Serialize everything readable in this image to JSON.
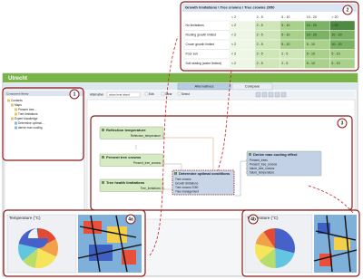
{
  "window_title": "Utrecht",
  "tabs": [
    "Alternatives",
    "Compare"
  ],
  "library": {
    "title": "Component library",
    "items": [
      "Contents",
      "Maps",
      "Present tree...",
      "Tree limitations",
      "Expert knowledge",
      "Determine optimal...",
      "derive max cooling"
    ]
  },
  "toolbar": {
    "alternative_label": "Alternative",
    "alternative_value": "urban heat island",
    "buttons": [
      "Edit",
      "Clear",
      "Select"
    ]
  },
  "nodes": [
    {
      "title": "Reflection temperature",
      "ports": [
        "Reflection_temperature"
      ]
    },
    {
      "title": "Present tree crowns",
      "ports": [
        "Present_tree_crowns"
      ]
    },
    {
      "title": "Tree health limitations",
      "ports": [
        "Tree_limitations"
      ]
    },
    {
      "title": "Determine optimal conditions",
      "ports": [
        "Tree crowns",
        "Growth limitations",
        "Tree crowns 2050",
        "Tree management"
      ]
    },
    {
      "title": "Derive max cooling effect",
      "ports": [
        "Present_trees",
        "Present_tree_crowns",
        "future_tree_crowns",
        "future_temperature"
      ]
    }
  ],
  "table": {
    "title": "Growth limitations \\ Tree crowns \\ Tree crowns 2050",
    "columns": [
      "< 2",
      "2 - 5",
      "5 - 10",
      "10 - 20",
      "> 20"
    ],
    "shades": [
      "#eef6e6",
      "#cfe6b8",
      "#a9d18c",
      "#7cb265",
      "#4f8a43"
    ],
    "rows": [
      {
        "label": "No limitations",
        "cells": [
          "< 2",
          "2 - 5",
          "5 - 10",
          "10 - 20",
          "> 20"
        ]
      },
      {
        "label": "Rooting growth limited",
        "cells": [
          "< 2",
          "2 - 5",
          "5 - 10",
          "10 - 20",
          "10 - 20"
        ]
      },
      {
        "label": "Crown growth limited",
        "cells": [
          "< 2",
          "2 - 5",
          "5 - 10",
          "5 - 10",
          "10 - 20"
        ]
      },
      {
        "label": "Poor soil",
        "cells": [
          "< 2",
          "2 - 5",
          "2 - 5",
          "5 - 10",
          "5 - 10"
        ]
      },
      {
        "label": "Soil sealing (water limited)",
        "cells": [
          "< 2",
          "2 - 5",
          "2 - 5",
          "5 - 10",
          "5 - 10"
        ]
      }
    ]
  },
  "callouts": [
    "1",
    "2",
    "3",
    "4a",
    "4b"
  ],
  "insets": [
    {
      "title": "Temperature (°C)"
    },
    {
      "title": "Temperature (°C)"
    }
  ]
}
